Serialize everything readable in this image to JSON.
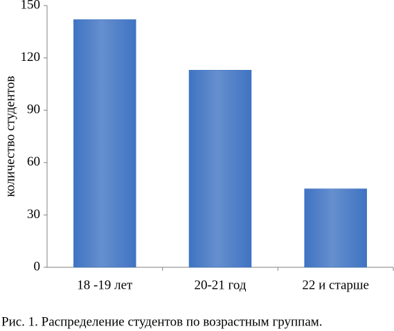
{
  "chart_data": {
    "type": "bar",
    "caption": "Рис. 1. Распределение студентов по возрастным группам.",
    "y_label": "количество студентов",
    "categories": [
      "18 -19 лет",
      "20-21 год",
      "22 и старше"
    ],
    "values": [
      142,
      113,
      45
    ],
    "color": "#3f73c2",
    "ylim": [
      0,
      150
    ],
    "yticks": [
      0,
      30,
      60,
      90,
      120,
      150
    ],
    "grid": false
  }
}
